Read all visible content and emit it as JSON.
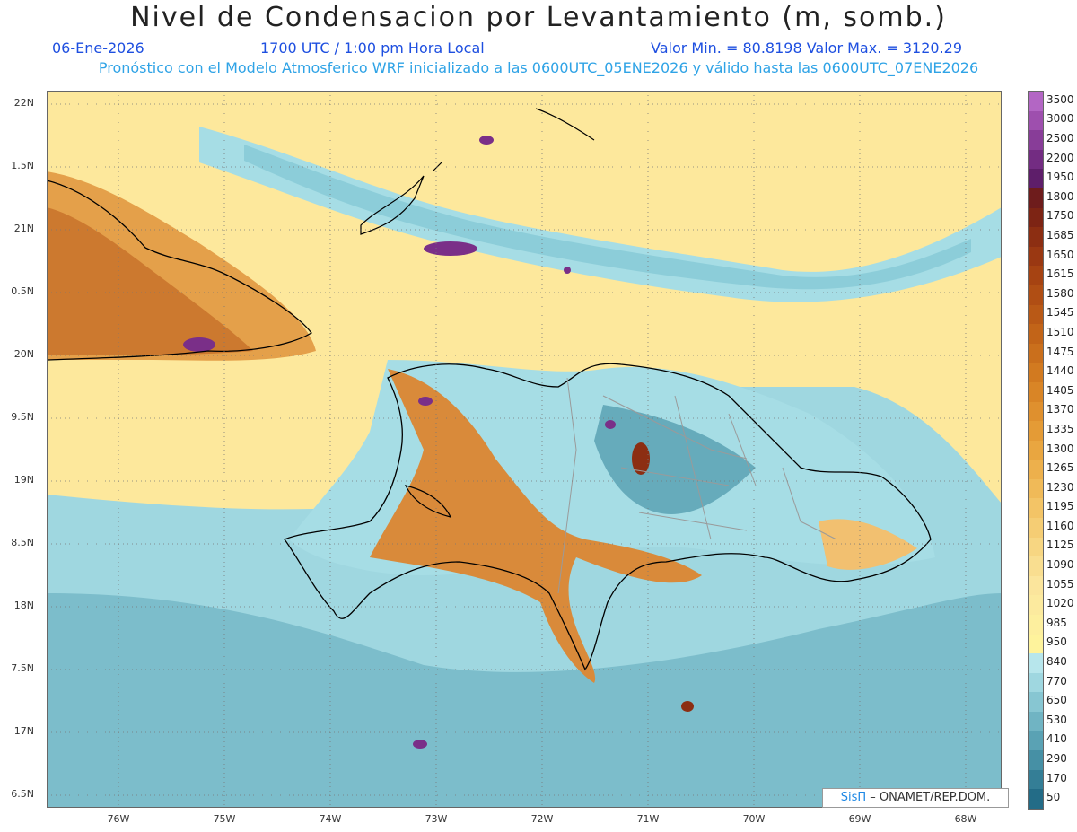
{
  "title": "Nivel de Condensacion por Levantamiento (m, somb.)",
  "date": "06-Ene-2026",
  "time": "1700 UTC / 1:00 pm Hora Local",
  "value_range": "Valor Min. = 80.8198   Valor Max. = 3120.29",
  "forecast_info": "Pronóstico con el Modelo Atmosferico WRF inicializado a las 0600UTC_05ENE2026 y válido hasta las  0600UTC_07ENE2026",
  "lat_ticks": [
    "22N",
    "1.5N",
    "21N",
    "0.5N",
    "20N",
    "9.5N",
    "19N",
    "8.5N",
    "18N",
    "7.5N",
    "17N",
    "6.5N"
  ],
  "lon_ticks": [
    "76W",
    "75W",
    "74W",
    "73W",
    "72W",
    "71W",
    "70W",
    "69W",
    "68W"
  ],
  "colorbar": [
    {
      "label": "3500",
      "color": "#b366c4"
    },
    {
      "label": "3000",
      "color": "#9e4fae"
    },
    {
      "label": "2500",
      "color": "#883d98"
    },
    {
      "label": "2200",
      "color": "#732c82"
    },
    {
      "label": "1950",
      "color": "#5e1e6a"
    },
    {
      "label": "1800",
      "color": "#6e1c1c"
    },
    {
      "label": "1750",
      "color": "#7d2414"
    },
    {
      "label": "1685",
      "color": "#8c2e12"
    },
    {
      "label": "1650",
      "color": "#9a3812"
    },
    {
      "label": "1615",
      "color": "#a64312"
    },
    {
      "label": "1580",
      "color": "#b04e14"
    },
    {
      "label": "1545",
      "color": "#b95916"
    },
    {
      "label": "1510",
      "color": "#c26418"
    },
    {
      "label": "1475",
      "color": "#ca6f1c"
    },
    {
      "label": "1440",
      "color": "#d27a20"
    },
    {
      "label": "1405",
      "color": "#d98526"
    },
    {
      "label": "1370",
      "color": "#df902e"
    },
    {
      "label": "1335",
      "color": "#e49b36"
    },
    {
      "label": "1300",
      "color": "#e9a640"
    },
    {
      "label": "1265",
      "color": "#edb04c"
    },
    {
      "label": "1230",
      "color": "#f0ba58"
    },
    {
      "label": "1195",
      "color": "#f3c466"
    },
    {
      "label": "1160",
      "color": "#f5cd74"
    },
    {
      "label": "1125",
      "color": "#f7d682"
    },
    {
      "label": "1090",
      "color": "#f9de90"
    },
    {
      "label": "1055",
      "color": "#fbe59c"
    },
    {
      "label": "1020",
      "color": "#fcea9e"
    },
    {
      "label": "985",
      "color": "#fdef9e"
    },
    {
      "label": "950",
      "color": "#fef39c"
    },
    {
      "label": "840",
      "color": "#b7e6ec"
    },
    {
      "label": "770",
      "color": "#9fd7e0"
    },
    {
      "label": "650",
      "color": "#87c6d2"
    },
    {
      "label": "530",
      "color": "#70b4c3"
    },
    {
      "label": "410",
      "color": "#5aa2b4"
    },
    {
      "label": "290",
      "color": "#4690a5"
    },
    {
      "label": "170",
      "color": "#347e96"
    },
    {
      "label": "50",
      "color": "#236c87"
    }
  ],
  "credit": {
    "brand": "SisΠ",
    "text": "– ONAMET/REP.DOM."
  },
  "colors": {
    "title_blue": "#1e4fe0",
    "info_cyan": "#2fa3e6",
    "ocean_teal": "#7cc0cd",
    "band_cyan": "#a9dfe6",
    "land_yellow": "#fde89a",
    "land_orange": "#d98a3a"
  }
}
